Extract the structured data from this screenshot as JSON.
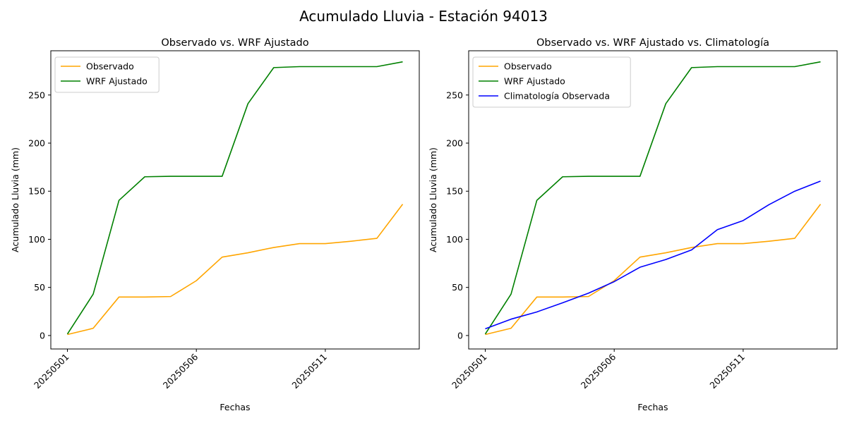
{
  "figure": {
    "suptitle": "Acumulado Lluvia - Estación 94013"
  },
  "chart_data": [
    {
      "type": "line",
      "title": "Observado vs. WRF Ajustado",
      "xlabel": "Fechas",
      "ylabel": "Acumulado Lluvia (mm)",
      "x": [
        "20250501",
        "20250502",
        "20250503",
        "20250504",
        "20250505",
        "20250506",
        "20250507",
        "20250508",
        "20250509",
        "20250510",
        "20250511",
        "20250512",
        "20250513",
        "20250514"
      ],
      "xticks": [
        "20250501",
        "20250506",
        "20250511"
      ],
      "yticks": [
        0,
        50,
        100,
        150,
        200,
        250
      ],
      "ylim": [
        -14,
        296
      ],
      "grid": false,
      "legend_position": "upper-left",
      "series": [
        {
          "name": "Observado",
          "color": "#ffa500",
          "values": [
            1,
            7.5,
            40,
            40,
            40.5,
            57,
            81.5,
            86,
            91.5,
            95.5,
            95.5,
            98,
            101,
            136.5
          ]
        },
        {
          "name": "WRF Ajustado",
          "color": "#008000",
          "values": [
            1.5,
            43,
            140.5,
            165,
            165.5,
            165.5,
            165.5,
            241,
            278.5,
            279.5,
            279.5,
            279.5,
            279.5,
            284.5
          ]
        }
      ]
    },
    {
      "type": "line",
      "title": "Observado vs. WRF Ajustado vs. Climatología",
      "xlabel": "Fechas",
      "ylabel": "Acumulado Lluvia (mm)",
      "x": [
        "20250501",
        "20250502",
        "20250503",
        "20250504",
        "20250505",
        "20250506",
        "20250507",
        "20250508",
        "20250509",
        "20250510",
        "20250511",
        "20250512",
        "20250513",
        "20250514"
      ],
      "xticks": [
        "20250501",
        "20250506",
        "20250511"
      ],
      "yticks": [
        0,
        50,
        100,
        150,
        200,
        250
      ],
      "ylim": [
        -14,
        296
      ],
      "grid": false,
      "legend_position": "upper-left",
      "series": [
        {
          "name": "Observado",
          "color": "#ffa500",
          "values": [
            1,
            7.5,
            40,
            40,
            40.5,
            57,
            81.5,
            86,
            91.5,
            95.5,
            95.5,
            98,
            101,
            136.5
          ]
        },
        {
          "name": "WRF Ajustado",
          "color": "#008000",
          "values": [
            1.5,
            43,
            140.5,
            165,
            165.5,
            165.5,
            165.5,
            241,
            278.5,
            279.5,
            279.5,
            279.5,
            279.5,
            284.5
          ]
        },
        {
          "name": "Climatología Observada",
          "color": "#0000ff",
          "values": [
            7,
            17,
            24.5,
            34,
            44,
            56,
            71,
            79,
            89,
            110,
            119.5,
            136,
            150,
            160.5
          ]
        }
      ]
    }
  ]
}
